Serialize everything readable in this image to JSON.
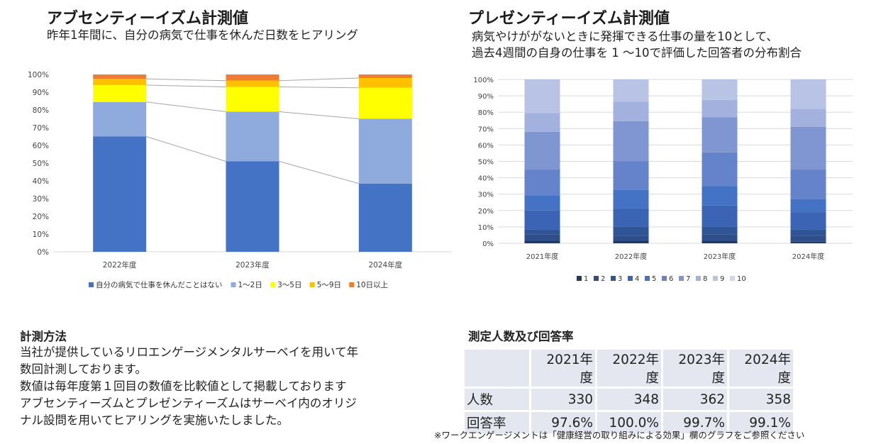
{
  "left": {
    "title": "アブセンティーイズム計測値",
    "subtitle": "昨年1年間に、自分の病気で仕事を休んだ日数をヒアリング"
  },
  "right": {
    "title": "プレゼンティーイズム計測値",
    "subtitle_line1": "病気やけががないときに発揮できる仕事の量を10として、",
    "subtitle_line2": "過去4週間の自身の仕事を 1 ～10で評価した回答者の分布割合"
  },
  "method": {
    "title": "計測方法",
    "lines": [
      "当社が提供しているリロエンゲージメンタルサーベイを用いて年",
      "数回計測しております。",
      "数値は毎年度第１回目の数値を比較値として掲載しております",
      "アブセンティーズムとプレゼンティーズムはサーベイ内のオリジ",
      "ナル設問を用いてヒアリングを実施いたしました。"
    ]
  },
  "stats": {
    "title": "測定人数及び回答率",
    "headers": [
      "2021年度",
      "2022年度",
      "2023年度",
      "2024年度"
    ],
    "rows": [
      {
        "label": "人数",
        "values": [
          "330",
          "348",
          "362",
          "358"
        ]
      },
      {
        "label": "回答率",
        "values": [
          "97.6%",
          "100.0%",
          "99.7%",
          "99.1%"
        ]
      }
    ]
  },
  "note": "※ワークエンゲージメントは「健康経営の取り組みによる効果」欄のグラフをご参照ください",
  "chart_data": [
    {
      "type": "bar",
      "stacked": "percent",
      "categories": [
        "2022年度",
        "2023年度",
        "2024年度"
      ],
      "series": [
        {
          "name": "自分の病気で仕事を休んだことはない",
          "color": "#4472c4",
          "values": [
            65,
            51,
            38.5
          ]
        },
        {
          "name": "1～2日",
          "color": "#8faadc",
          "values": [
            19.5,
            28,
            36.5
          ]
        },
        {
          "name": "3～5日",
          "color": "#ffff00",
          "values": [
            9.5,
            14,
            17.5
          ]
        },
        {
          "name": "5～9日",
          "color": "#ffc000",
          "values": [
            3.5,
            3.5,
            5.5
          ]
        },
        {
          "name": "10日以上",
          "color": "#ed7d31",
          "values": [
            2.5,
            3.5,
            2
          ]
        }
      ],
      "ylim": [
        0,
        100
      ],
      "yticks": [
        "0%",
        "10%",
        "20%",
        "30%",
        "40%",
        "50%",
        "60%",
        "70%",
        "80%",
        "90%",
        "100%"
      ],
      "series_lines": true,
      "grid": false,
      "legend": "bottom"
    },
    {
      "type": "bar",
      "stacked": "percent",
      "categories": [
        "2021年度",
        "2022年度",
        "2023年度",
        "2024年度"
      ],
      "series": [
        {
          "name": "1",
          "color": "#203864",
          "values": [
            1.5,
            1.5,
            1.5,
            1
          ]
        },
        {
          "name": "2",
          "color": "#2e4d8a",
          "values": [
            4,
            3,
            4,
            3.5
          ]
        },
        {
          "name": "3",
          "color": "#2f5597",
          "values": [
            3,
            5.5,
            4.5,
            4
          ]
        },
        {
          "name": "4",
          "color": "#3b64b4",
          "values": [
            11.5,
            11.5,
            13,
            10.5
          ]
        },
        {
          "name": "5",
          "color": "#4472c4",
          "values": [
            9,
            11,
            12,
            8
          ]
        },
        {
          "name": "6",
          "color": "#6583cb",
          "values": [
            16,
            17.5,
            20.5,
            18
          ]
        },
        {
          "name": "7",
          "color": "#8096d2",
          "values": [
            23,
            24.5,
            21.5,
            26
          ]
        },
        {
          "name": "8",
          "color": "#a2b1dd",
          "values": [
            11.5,
            12,
            10.5,
            11
          ]
        },
        {
          "name": "9",
          "color": "#b8c3e5",
          "values": [
            20.5,
            13.5,
            12.5,
            18
          ]
        },
        {
          "name": "10",
          "color": "#d0d6ec",
          "values": [
            0,
            0,
            0,
            0
          ]
        }
      ],
      "ylim": [
        0,
        100
      ],
      "yticks": [
        "0%",
        "10%",
        "20%",
        "30%",
        "40%",
        "50%",
        "60%",
        "70%",
        "80%",
        "90%",
        "100%"
      ],
      "grid": true,
      "legend": "bottom"
    }
  ]
}
